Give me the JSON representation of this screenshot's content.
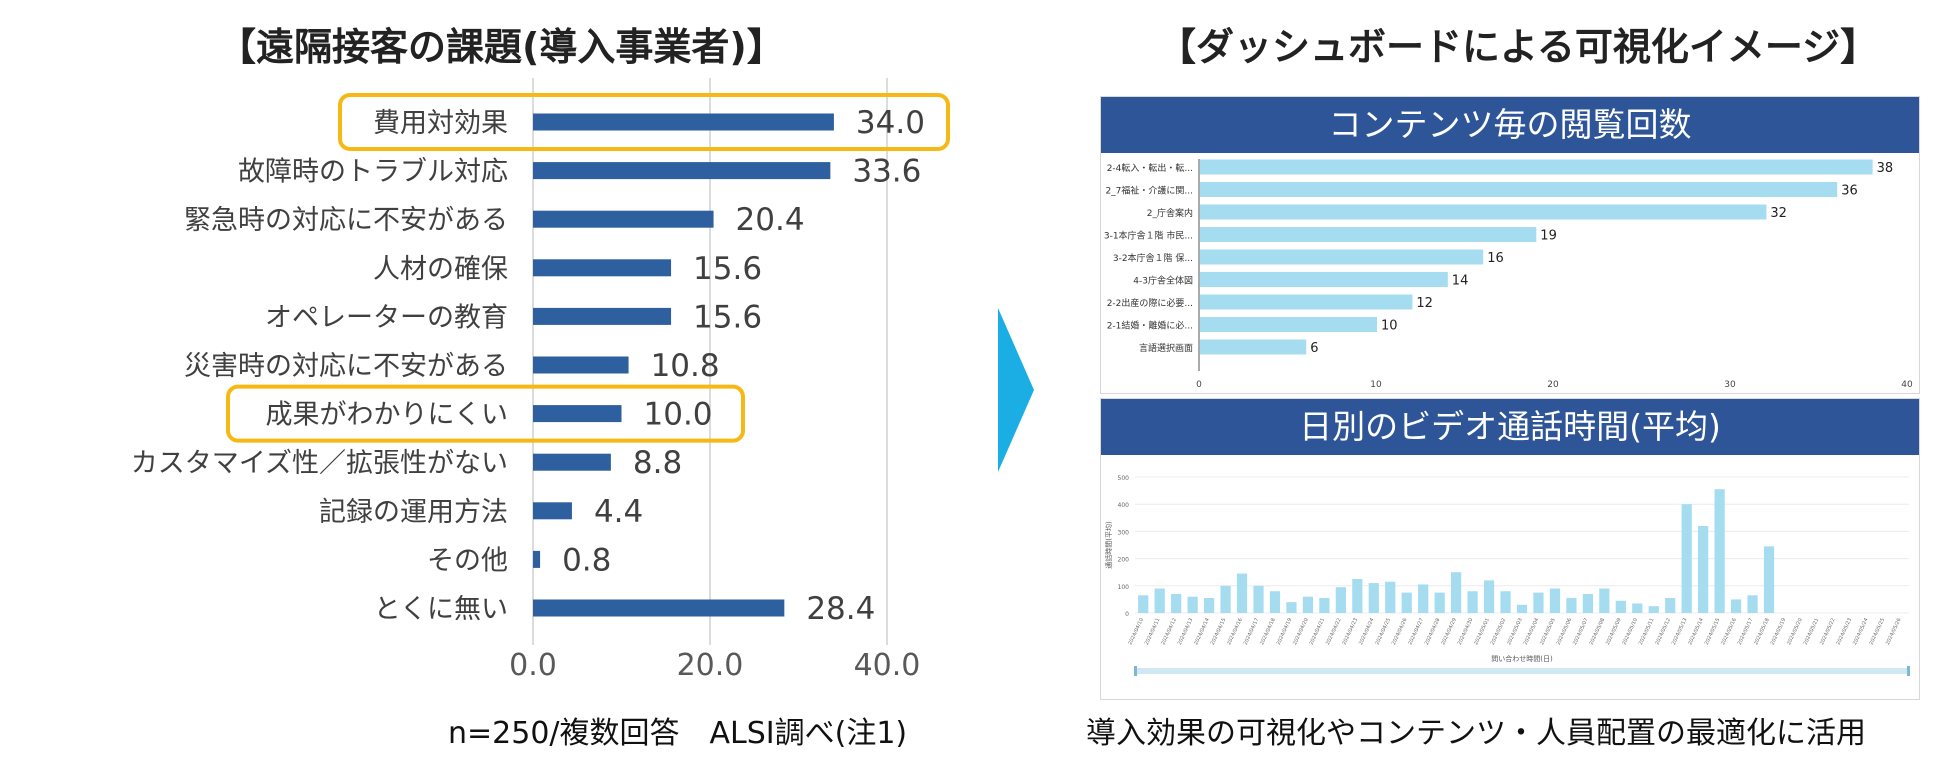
{
  "left": {
    "title": "【遠隔接客の課題(導入事業者)】",
    "note": "n=250/複数回答　ALSI調べ(注1)"
  },
  "right": {
    "title": "【ダッシュボードによる可視化イメージ】",
    "note": "導入効果の可視化やコンテンツ・人員配置の最適化に活用"
  },
  "colors": {
    "main_bar": "#2e5f9e",
    "highlight": "#f6b814",
    "arrow": "#1aaee5",
    "panel_header": "#2e5597",
    "panel_bar": "#a5dcf0"
  },
  "chart_data": [
    {
      "type": "bar",
      "orientation": "horizontal",
      "title": "【遠隔接客の課題(導入事業者)】",
      "categories": [
        "費用対効果",
        "故障時のトラブル対応",
        "緊急時の対応に不安がある",
        "人材の確保",
        "オペレーターの教育",
        "災害時の対応に不安がある",
        "成果がわかりにくい",
        "カスタマイズ性／拡張性がない",
        "記録の運用方法",
        "その他",
        "とくに無い"
      ],
      "values": [
        34.0,
        33.6,
        20.4,
        15.6,
        15.6,
        10.8,
        10.0,
        8.8,
        4.4,
        0.8,
        28.4
      ],
      "value_labels": [
        "34.0",
        "33.6",
        "20.4",
        "15.6",
        "15.6",
        "10.8",
        "10.0",
        "8.8",
        "4.4",
        "0.8",
        "28.4"
      ],
      "highlighted": [
        "費用対効果",
        "成果がわかりにくい"
      ],
      "xlim": [
        0,
        45
      ],
      "xticks": [
        0,
        20,
        40
      ],
      "xtick_labels": [
        "0.0",
        "20.0",
        "40.0"
      ],
      "grid": true
    },
    {
      "type": "bar",
      "orientation": "horizontal",
      "title": "コンテンツ毎の閲覧回数",
      "categories": [
        "2-4転入・転出・転...",
        "2_7福祉・介護に関...",
        "2_庁舎案内",
        "3-1本庁舎１階 市民...",
        "3-2本庁舎１階 保...",
        "4-3庁舎全体図",
        "2-2出産の際に必要...",
        "2-1結婚・離婚に必...",
        "言語選択画面"
      ],
      "values": [
        38,
        36,
        32,
        19,
        16,
        14,
        12,
        10,
        6
      ],
      "value_labels": [
        "38",
        "36",
        "32",
        "19",
        "16",
        "14",
        "12",
        "10",
        "6"
      ],
      "xlim": [
        0,
        40
      ],
      "xticks": [
        0,
        10,
        20,
        30,
        40
      ],
      "xtick_labels": [
        "0",
        "10",
        "20",
        "30",
        "40"
      ]
    },
    {
      "type": "bar",
      "orientation": "vertical",
      "title": "日別のビデオ通話時間(平均)",
      "ylabel": "通話時間(平均)",
      "xlabel": "問い合わせ時間(日)",
      "ylim": [
        0,
        500
      ],
      "yticks": [
        0,
        100,
        200,
        300,
        400,
        500
      ],
      "ytick_labels": [
        "0",
        "100",
        "200",
        "300",
        "400",
        "500"
      ],
      "x": [
        "2024/04/10",
        "2024/04/11",
        "2024/04/12",
        "2024/04/13",
        "2024/04/14",
        "2024/04/15",
        "2024/04/16",
        "2024/04/17",
        "2024/04/18",
        "2024/04/19",
        "2024/04/20",
        "2024/04/21",
        "2024/04/22",
        "2024/04/23",
        "2024/04/24",
        "2024/04/25",
        "2024/04/26",
        "2024/04/27",
        "2024/04/28",
        "2024/04/29",
        "2024/04/30",
        "2024/05/01",
        "2024/05/02",
        "2024/05/03",
        "2024/05/04",
        "2024/05/05",
        "2024/05/06",
        "2024/05/07",
        "2024/05/08",
        "2024/05/09",
        "2024/05/10",
        "2024/05/11",
        "2024/05/12",
        "2024/05/13",
        "2024/05/14",
        "2024/05/15",
        "2024/05/16",
        "2024/05/17",
        "2024/05/18",
        "2024/05/19",
        "2024/05/20",
        "2024/05/21",
        "2024/05/22",
        "2024/05/23",
        "2024/05/24",
        "2024/05/25",
        "2024/05/26"
      ],
      "values": [
        65,
        90,
        70,
        60,
        55,
        100,
        145,
        100,
        80,
        40,
        60,
        55,
        95,
        125,
        110,
        115,
        75,
        105,
        75,
        150,
        80,
        120,
        80,
        30,
        75,
        90,
        55,
        70,
        90,
        45,
        35,
        25,
        55,
        400,
        320,
        455,
        50,
        65,
        245,
        0,
        0,
        0,
        0,
        0,
        0,
        0,
        0
      ]
    }
  ]
}
